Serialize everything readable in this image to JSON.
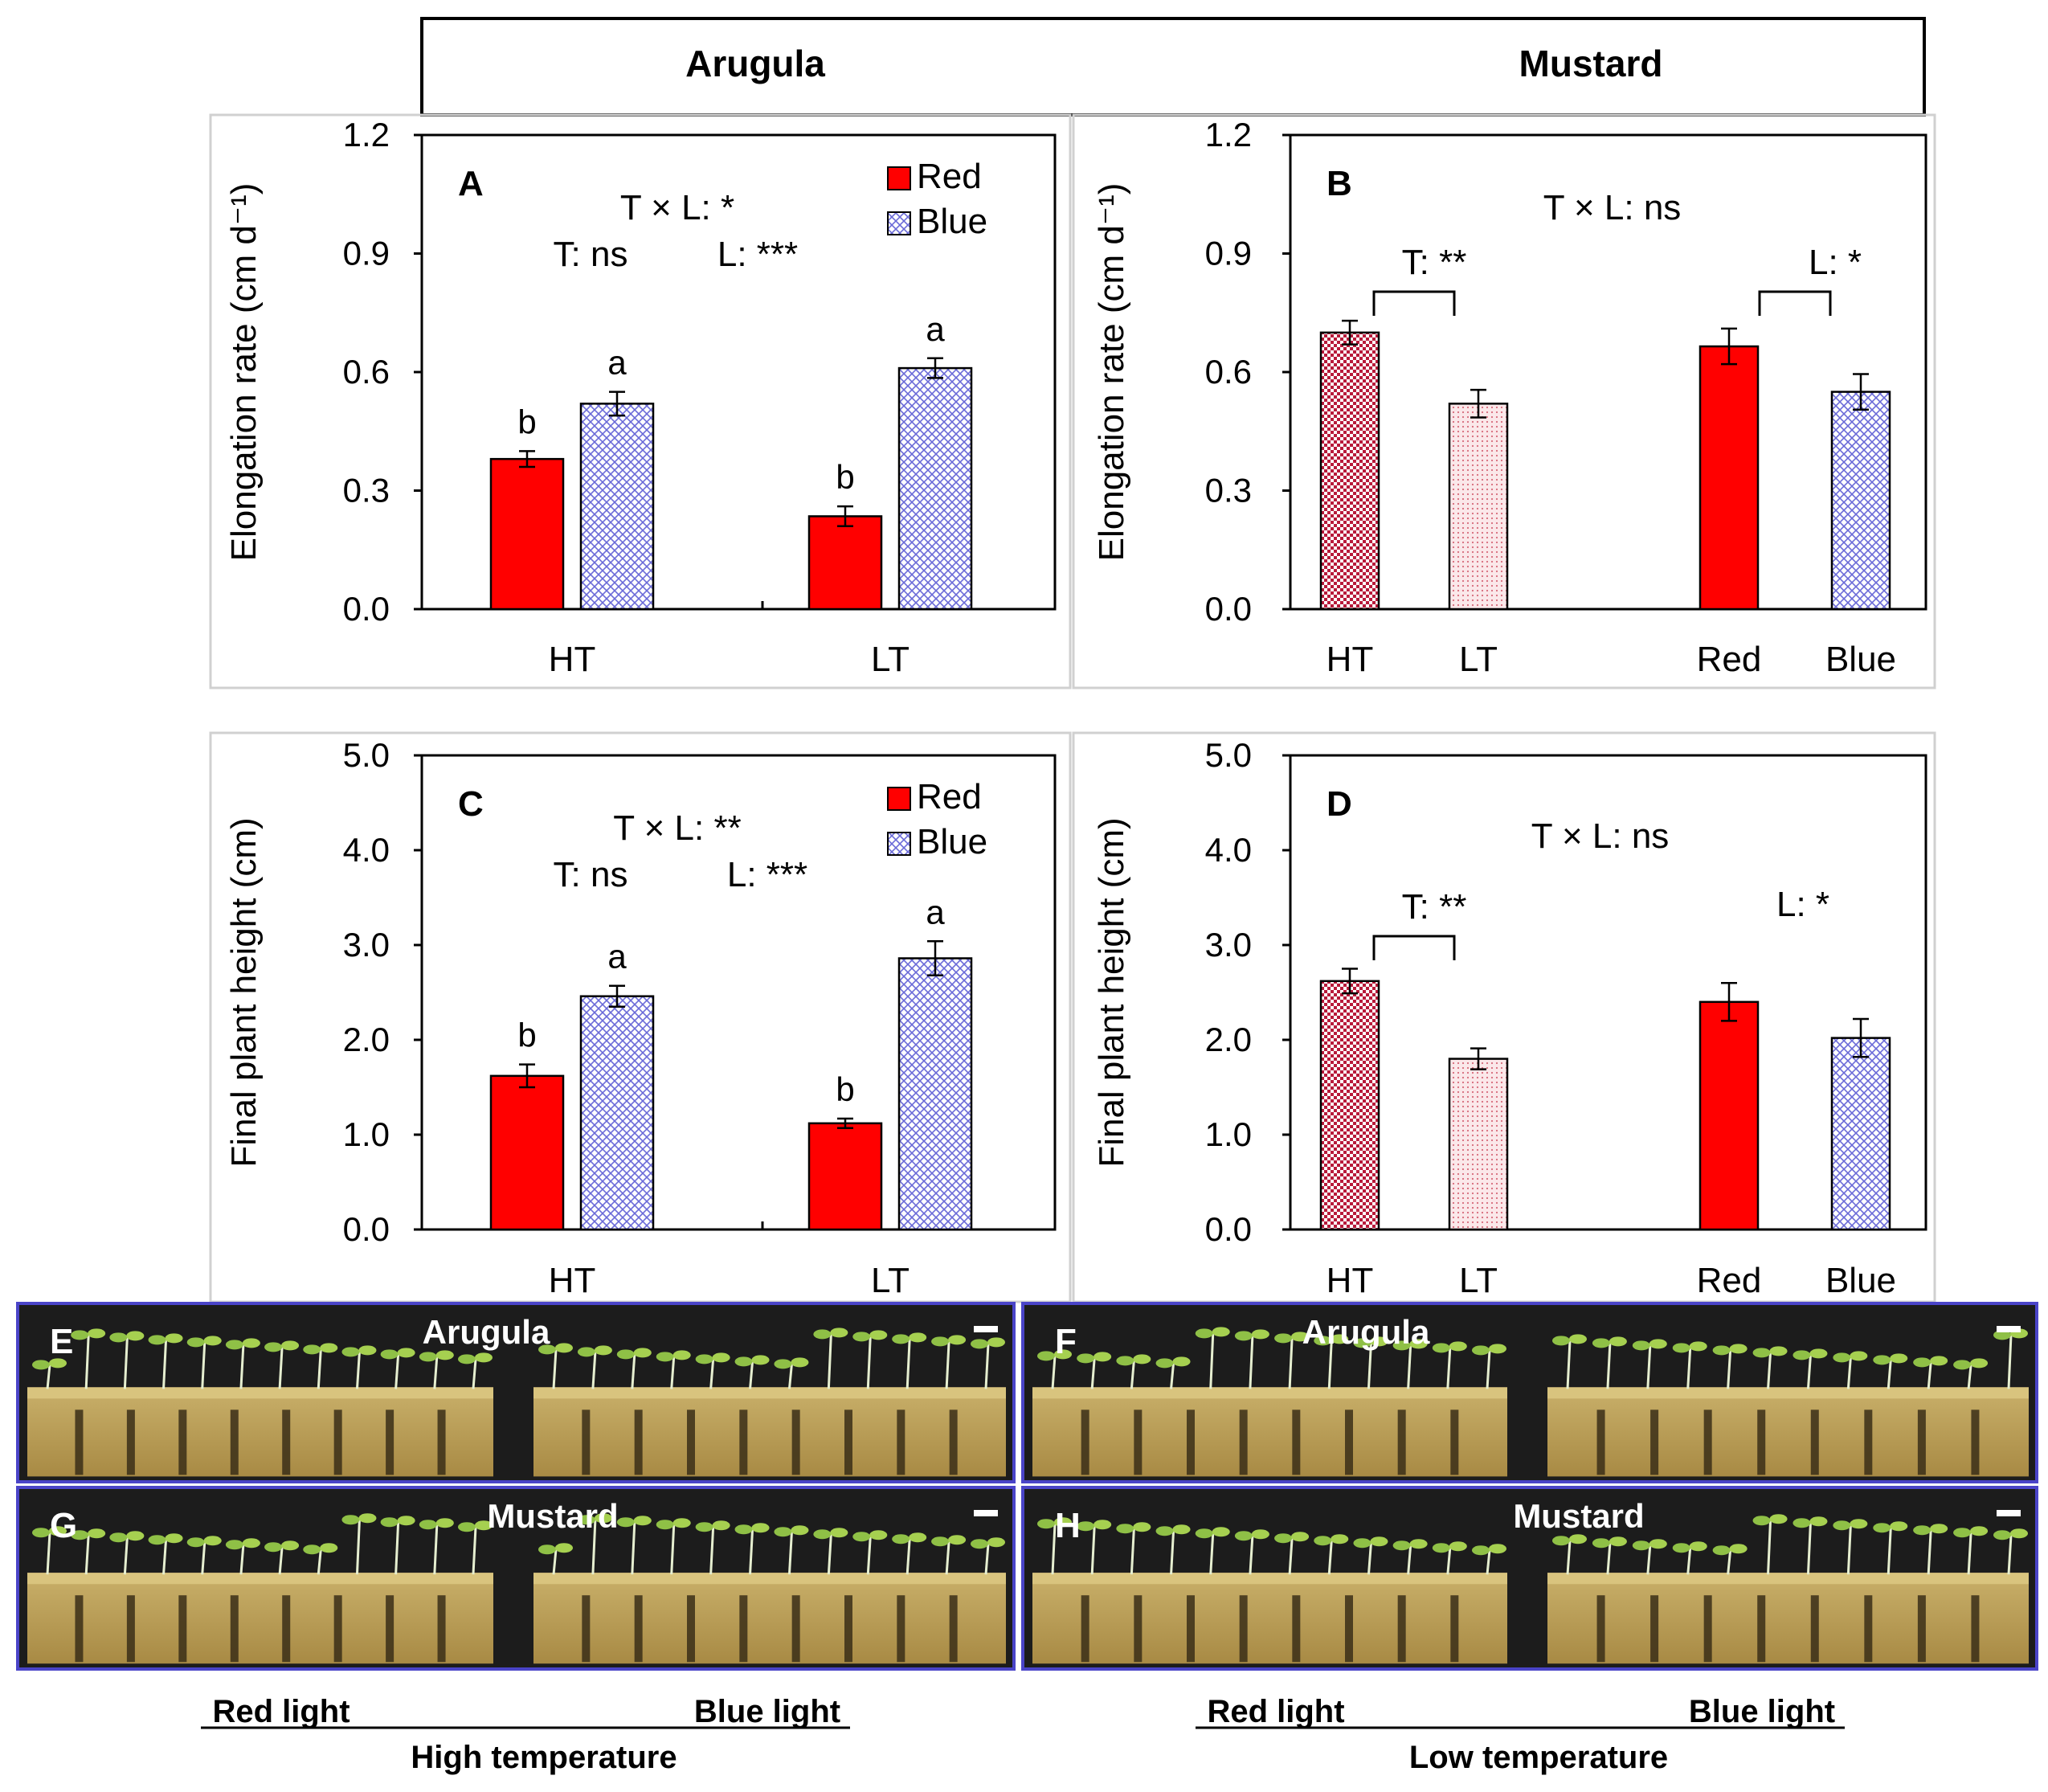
{
  "header": {
    "left": "Arugula",
    "right": "Mustard"
  },
  "colors": {
    "red": "#ff0000",
    "blue_pattern": "#6a6ad8",
    "ht_pattern": "#b81a3a",
    "lt_pattern": "#e8a0a8",
    "panel_border": "#6b6bd8"
  },
  "chart_data": [
    {
      "id": "A",
      "type": "bar",
      "ylabel": "Elongation rate (cm d⁻¹)",
      "ylim": [
        0,
        1.2
      ],
      "yticks": [
        "0.0",
        "0.3",
        "0.6",
        "0.9",
        "1.2"
      ],
      "ytick_values": [
        0,
        0.3,
        0.6,
        0.9,
        1.2
      ],
      "categories": [
        "HT",
        "LT"
      ],
      "series": [
        {
          "name": "Red",
          "values": [
            0.38,
            0.235
          ],
          "errors": [
            0.02,
            0.025
          ],
          "letters": [
            "b",
            "b"
          ]
        },
        {
          "name": "Blue",
          "values": [
            0.52,
            0.61
          ],
          "errors": [
            0.03,
            0.025
          ],
          "letters": [
            "a",
            "a"
          ]
        }
      ],
      "legend": [
        "Red",
        "Blue"
      ],
      "annotations": [
        "T × L: *",
        "T: ns",
        "L: ***"
      ]
    },
    {
      "id": "B",
      "type": "bar",
      "ylabel": "Elongation rate (cm d⁻¹)",
      "ylim": [
        0,
        1.2
      ],
      "yticks": [
        "0.0",
        "0.3",
        "0.6",
        "0.9",
        "1.2"
      ],
      "ytick_values": [
        0,
        0.3,
        0.6,
        0.9,
        1.2
      ],
      "categories": [
        "HT",
        "LT",
        "Red",
        "Blue"
      ],
      "values": [
        0.7,
        0.52,
        0.665,
        0.55
      ],
      "errors": [
        0.03,
        0.035,
        0.045,
        0.045
      ],
      "annotations": [
        "T × L: ns",
        "T: **",
        "L: *"
      ]
    },
    {
      "id": "C",
      "type": "bar",
      "ylabel": "Final plant height (cm)",
      "ylim": [
        0,
        5.0
      ],
      "yticks": [
        "0.0",
        "1.0",
        "2.0",
        "3.0",
        "4.0",
        "5.0"
      ],
      "ytick_values": [
        0,
        1,
        2,
        3,
        4,
        5
      ],
      "categories": [
        "HT",
        "LT"
      ],
      "series": [
        {
          "name": "Red",
          "values": [
            1.62,
            1.12
          ],
          "errors": [
            0.12,
            0.05
          ],
          "letters": [
            "b",
            "b"
          ]
        },
        {
          "name": "Blue",
          "values": [
            2.46,
            2.86
          ],
          "errors": [
            0.11,
            0.18
          ],
          "letters": [
            "a",
            "a"
          ]
        }
      ],
      "legend": [
        "Red",
        "Blue"
      ],
      "annotations": [
        "T × L: **",
        "T: ns",
        "L: ***"
      ]
    },
    {
      "id": "D",
      "type": "bar",
      "ylabel": "Final plant height (cm)",
      "ylim": [
        0,
        5.0
      ],
      "yticks": [
        "0.0",
        "1.0",
        "2.0",
        "3.0",
        "4.0",
        "5.0"
      ],
      "ytick_values": [
        0,
        1,
        2,
        3,
        4,
        5
      ],
      "categories": [
        "HT",
        "LT",
        "Red",
        "Blue"
      ],
      "values": [
        2.62,
        1.8,
        2.4,
        2.02
      ],
      "errors": [
        0.13,
        0.11,
        0.2,
        0.2
      ],
      "annotations": [
        "T × L: ns",
        "T: **",
        "L: *"
      ]
    }
  ],
  "photos": [
    {
      "letter": "E",
      "title": "Arugula"
    },
    {
      "letter": "F",
      "title": "Arugula"
    },
    {
      "letter": "G",
      "title": "Mustard"
    },
    {
      "letter": "H",
      "title": "Mustard"
    }
  ],
  "bottom_labels": {
    "red_light": "Red light",
    "blue_light": "Blue light",
    "high_temperature": "High temperature",
    "low_temperature": "Low temperature"
  }
}
